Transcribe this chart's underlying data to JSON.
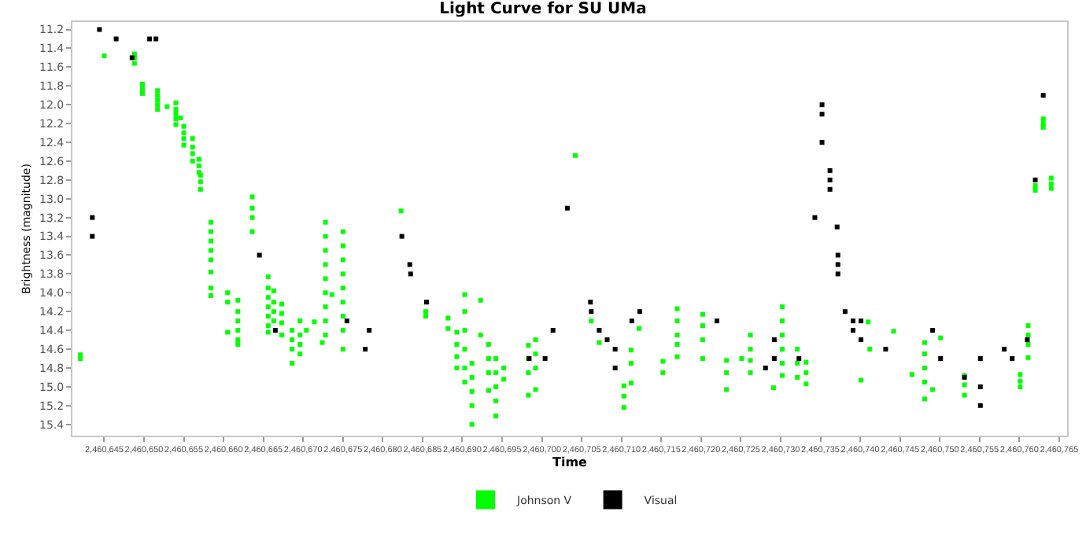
{
  "chart_data": {
    "type": "scatter",
    "title": "Light Curve for SU UMa",
    "xlabel": "Time",
    "ylabel": "Brightness (magnitude)",
    "legend": "bottom",
    "marker": "square",
    "xlim": [
      2460641,
      2460766
    ],
    "xticks": [
      {
        "value": 2460645,
        "label": "2,460,645"
      },
      {
        "value": 2460650,
        "label": "2,460,650"
      },
      {
        "value": 2460655,
        "label": "2,460,655"
      },
      {
        "value": 2460660,
        "label": "2,460,660"
      },
      {
        "value": 2460665,
        "label": "2,460,665"
      },
      {
        "value": 2460670,
        "label": "2,460,670"
      },
      {
        "value": 2460675,
        "label": "2,460,675"
      },
      {
        "value": 2460680,
        "label": "2,460,680"
      },
      {
        "value": 2460685,
        "label": "2,460,685"
      },
      {
        "value": 2460690,
        "label": "2,460,690"
      },
      {
        "value": 2460695,
        "label": "2,460,695"
      },
      {
        "value": 2460700,
        "label": "2,460,700"
      },
      {
        "value": 2460705,
        "label": "2,460,705"
      },
      {
        "value": 2460710,
        "label": "2,460,710"
      },
      {
        "value": 2460715,
        "label": "2,460,715"
      },
      {
        "value": 2460720,
        "label": "2,460,720"
      },
      {
        "value": 2460725,
        "label": "2,460,725"
      },
      {
        "value": 2460730,
        "label": "2,460,730"
      },
      {
        "value": 2460735,
        "label": "2,460,735"
      },
      {
        "value": 2460740,
        "label": "2,460,740"
      },
      {
        "value": 2460745,
        "label": "2,460,745"
      },
      {
        "value": 2460750,
        "label": "2,460,750"
      },
      {
        "value": 2460755,
        "label": "2,460,755"
      },
      {
        "value": 2460760,
        "label": "2,460,760"
      },
      {
        "value": 2460765,
        "label": "2,460,765"
      }
    ],
    "ylim": [
      15.52,
      11.12
    ],
    "yticks": [
      11.2,
      11.4,
      11.6,
      11.8,
      {
        "value": 12,
        "label": "12.0"
      },
      12.2,
      12.4,
      12.6,
      12.8,
      {
        "value": 13,
        "label": "13.0"
      },
      13.2,
      13.4,
      13.6,
      13.8,
      {
        "value": 14,
        "label": "14.0"
      },
      14.2,
      14.4,
      14.6,
      14.8,
      {
        "value": 15,
        "label": "15.0"
      },
      15.2,
      15.4
    ],
    "series": [
      {
        "name": "Johnson V",
        "color": "#00ff00",
        "x": [
          2460642.0,
          2460642.0,
          2460645.0,
          2460648.8,
          2460648.8,
          2460648.8,
          2460649.8,
          2460649.8,
          2460649.8,
          2460651.7,
          2460651.7,
          2460651.7,
          2460651.7,
          2460651.7,
          2460652.9,
          2460654.0,
          2460654.0,
          2460654.0,
          2460654.0,
          2460654.0,
          2460654.6,
          2460655.0,
          2460655.0,
          2460655.0,
          2460655.0,
          2460656.1,
          2460656.1,
          2460656.1,
          2460656.1,
          2460656.9,
          2460656.9,
          2460656.9,
          2460657.1,
          2460657.1,
          2460657.1,
          2460658.4,
          2460658.4,
          2460658.4,
          2460658.4,
          2460658.4,
          2460658.4,
          2460658.4,
          2460658.4,
          2460660.5,
          2460660.5,
          2460660.5,
          2460661.8,
          2460661.8,
          2460661.8,
          2460661.8,
          2460661.8,
          2460661.8,
          2460663.6,
          2460663.6,
          2460663.6,
          2460663.6,
          2460665.6,
          2460665.6,
          2460665.6,
          2460665.6,
          2460665.6,
          2460665.6,
          2460665.6,
          2460666.3,
          2460666.3,
          2460666.3,
          2460666.3,
          2460667.3,
          2460667.3,
          2460667.3,
          2460667.3,
          2460668.6,
          2460668.6,
          2460668.6,
          2460668.6,
          2460669.6,
          2460669.6,
          2460669.6,
          2460669.6,
          2460670.4,
          2460671.4,
          2460672.4,
          2460672.8,
          2460672.8,
          2460672.8,
          2460672.8,
          2460672.8,
          2460672.8,
          2460672.8,
          2460672.8,
          2460672.8,
          2460673.6,
          2460675.0,
          2460675.0,
          2460675.0,
          2460675.0,
          2460675.0,
          2460675.0,
          2460675.0,
          2460675.0,
          2460675.0,
          2460682.3,
          2460685.4,
          2460685.4,
          2460688.2,
          2460688.2,
          2460689.3,
          2460689.3,
          2460689.3,
          2460689.3,
          2460690.3,
          2460690.3,
          2460690.3,
          2460690.3,
          2460690.3,
          2460690.3,
          2460691.2,
          2460691.2,
          2460691.2,
          2460691.2,
          2460691.2,
          2460692.3,
          2460692.3,
          2460693.3,
          2460693.3,
          2460693.3,
          2460693.3,
          2460694.2,
          2460694.2,
          2460694.2,
          2460694.2,
          2460694.2,
          2460695.2,
          2460695.2,
          2460698.3,
          2460698.3,
          2460698.3,
          2460698.3,
          2460699.2,
          2460699.2,
          2460699.2,
          2460699.2,
          2460704.2,
          2460706.2,
          2460707.2,
          2460710.3,
          2460710.3,
          2460710.3,
          2460711.2,
          2460711.2,
          2460711.2,
          2460712.2,
          2460715.2,
          2460715.2,
          2460717.0,
          2460717.0,
          2460717.0,
          2460717.0,
          2460717.0,
          2460720.2,
          2460720.2,
          2460720.2,
          2460720.2,
          2460723.2,
          2460723.2,
          2460723.2,
          2460725.1,
          2460726.2,
          2460726.2,
          2460726.2,
          2460726.2,
          2460729.1,
          2460730.2,
          2460730.2,
          2460730.2,
          2460730.2,
          2460730.2,
          2460730.2,
          2460732.1,
          2460732.1,
          2460732.1,
          2460733.2,
          2460733.2,
          2460733.2,
          2460740.1,
          2460741.0,
          2460741.2,
          2460744.2,
          2460746.5,
          2460748.1,
          2460748.1,
          2460748.1,
          2460748.1,
          2460748.1,
          2460749.1,
          2460750.1,
          2460753.1,
          2460753.1,
          2460753.1,
          2460760.1,
          2460760.1,
          2460760.1,
          2460761.1,
          2460761.1,
          2460761.1,
          2460761.1,
          2460762.0,
          2460762.0,
          2460763.0,
          2460763.0,
          2460763.0,
          2460764.0,
          2460764.0,
          2460764.0
        ],
        "values": [
          14.66,
          14.7,
          11.48,
          11.46,
          11.5,
          11.56,
          11.78,
          11.83,
          11.88,
          11.85,
          11.9,
          11.95,
          12.0,
          12.05,
          12.02,
          11.98,
          12.05,
          12.1,
          12.15,
          12.21,
          12.14,
          12.23,
          12.3,
          12.36,
          12.43,
          12.36,
          12.45,
          12.52,
          12.6,
          12.58,
          12.65,
          12.72,
          12.75,
          12.82,
          12.9,
          13.25,
          13.35,
          13.45,
          13.55,
          13.65,
          13.78,
          13.95,
          14.03,
          14.0,
          14.1,
          14.42,
          14.08,
          14.2,
          14.3,
          14.4,
          14.5,
          14.55,
          12.98,
          13.1,
          13.2,
          13.35,
          13.83,
          13.95,
          14.05,
          14.15,
          14.25,
          14.35,
          14.42,
          13.98,
          14.1,
          14.2,
          14.3,
          14.12,
          14.22,
          14.32,
          14.45,
          14.4,
          14.5,
          14.6,
          14.75,
          14.3,
          14.45,
          14.55,
          14.65,
          14.4,
          14.31,
          14.53,
          13.25,
          13.4,
          13.55,
          13.7,
          13.85,
          14.0,
          14.15,
          14.3,
          14.45,
          14.02,
          13.35,
          13.5,
          13.65,
          13.8,
          13.95,
          14.1,
          14.25,
          14.4,
          14.6,
          13.13,
          14.2,
          14.25,
          14.27,
          14.38,
          14.42,
          14.55,
          14.68,
          14.8,
          14.02,
          14.2,
          14.4,
          14.6,
          14.8,
          14.95,
          14.75,
          14.9,
          15.05,
          15.2,
          15.4,
          14.08,
          14.45,
          14.55,
          14.7,
          14.85,
          15.04,
          14.7,
          14.85,
          15.0,
          15.15,
          15.31,
          14.8,
          14.92,
          14.56,
          14.7,
          14.85,
          15.09,
          14.5,
          14.65,
          14.8,
          15.03,
          12.54,
          14.3,
          14.53,
          14.99,
          15.1,
          15.22,
          14.61,
          14.75,
          14.96,
          14.38,
          14.73,
          14.85,
          14.17,
          14.3,
          14.45,
          14.55,
          14.68,
          14.23,
          14.35,
          14.5,
          14.7,
          14.72,
          14.85,
          15.03,
          14.7,
          14.45,
          14.6,
          14.72,
          14.85,
          15.01,
          14.15,
          14.3,
          14.45,
          14.6,
          14.75,
          14.88,
          14.6,
          14.75,
          14.9,
          14.74,
          14.85,
          14.97,
          14.93,
          14.31,
          14.6,
          14.41,
          14.87,
          14.53,
          14.65,
          14.8,
          14.95,
          15.13,
          15.03,
          14.48,
          14.88,
          14.98,
          15.09,
          14.87,
          14.94,
          15.0,
          14.35,
          14.45,
          14.55,
          14.69,
          12.86,
          12.91,
          12.15,
          12.2,
          12.24,
          12.78,
          12.84,
          12.89
        ]
      },
      {
        "name": "Visual",
        "color": "#000000",
        "x": [
          2460643.5,
          2460643.5,
          2460644.4,
          2460646.5,
          2460648.5,
          2460650.7,
          2460651.5,
          2460664.5,
          2460666.5,
          2460675.5,
          2460677.8,
          2460678.3,
          2460682.4,
          2460683.4,
          2460683.5,
          2460685.5,
          2460698.4,
          2460700.4,
          2460701.4,
          2460703.2,
          2460706.1,
          2460706.2,
          2460707.2,
          2460708.2,
          2460709.2,
          2460709.2,
          2460711.3,
          2460712.3,
          2460722.0,
          2460728.1,
          2460729.2,
          2460729.2,
          2460732.3,
          2460734.3,
          2460735.2,
          2460735.2,
          2460735.2,
          2460736.2,
          2460736.2,
          2460736.2,
          2460737.1,
          2460737.2,
          2460737.2,
          2460737.2,
          2460738.1,
          2460739.1,
          2460739.1,
          2460740.1,
          2460740.1,
          2460743.2,
          2460749.1,
          2460750.1,
          2460753.1,
          2460755.1,
          2460755.1,
          2460755.1,
          2460758.1,
          2460759.1,
          2460761.0,
          2460762.0,
          2460763.0
        ],
        "values": [
          13.2,
          13.4,
          11.2,
          11.3,
          11.5,
          11.3,
          11.3,
          13.6,
          14.4,
          14.3,
          14.6,
          14.4,
          13.4,
          13.7,
          13.8,
          14.1,
          14.7,
          14.7,
          14.4,
          13.1,
          14.1,
          14.2,
          14.4,
          14.5,
          14.6,
          14.8,
          14.3,
          14.2,
          14.3,
          14.8,
          14.5,
          14.7,
          14.7,
          13.2,
          12.0,
          12.1,
          12.4,
          12.7,
          12.8,
          12.9,
          13.3,
          13.6,
          13.7,
          13.8,
          14.2,
          14.3,
          14.4,
          14.3,
          14.5,
          14.6,
          14.4,
          14.7,
          14.9,
          14.7,
          15.0,
          15.2,
          14.6,
          14.7,
          14.5,
          12.8,
          11.9
        ]
      }
    ]
  }
}
